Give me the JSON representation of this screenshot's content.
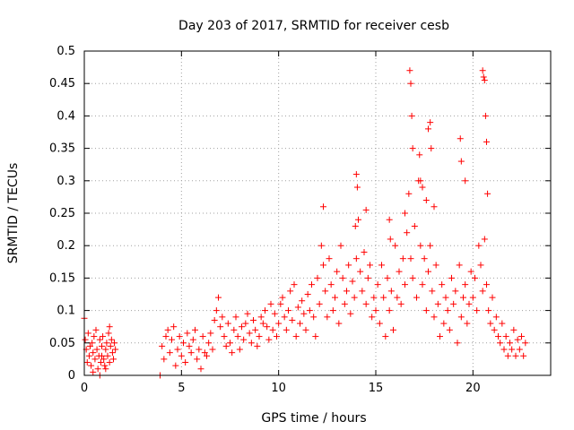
{
  "chart_data": {
    "type": "scatter",
    "title": "Day 203 of 2017, SRMTID for receiver cesb",
    "xlabel": "GPS time / hours",
    "ylabel": "SRMTID / TECUs",
    "xlim": [
      0,
      24
    ],
    "ylim": [
      0,
      0.5
    ],
    "x_ticks": [
      0,
      5,
      10,
      15,
      20
    ],
    "x_tick_labels": [
      "0",
      "5",
      "10",
      "15",
      "20"
    ],
    "y_ticks": [
      0,
      0.05,
      0.1,
      0.15,
      0.2,
      0.25,
      0.3,
      0.35,
      0.4,
      0.45,
      0.5
    ],
    "y_tick_labels": [
      "0",
      "0.05",
      "0.1",
      "0.15",
      "0.2",
      "0.25",
      "0.3",
      "0.35",
      "0.4",
      "0.45",
      "0.5"
    ],
    "grid": true,
    "marker": "+",
    "color": "#ff0000",
    "series": [
      {
        "name": "SRMTID",
        "x": [
          0.0,
          0.05,
          0.1,
          0.15,
          0.2,
          0.25,
          0.3,
          0.35,
          0.4,
          0.45,
          0.5,
          0.55,
          0.6,
          0.65,
          0.7,
          0.75,
          0.8,
          0.85,
          0.9,
          0.95,
          1.0,
          1.05,
          1.1,
          1.15,
          1.2,
          1.25,
          1.3,
          1.35,
          1.4,
          1.45,
          1.5,
          1.55,
          1.6,
          0.45,
          0.8,
          1.1,
          1.3,
          0.9,
          3.9,
          4.0,
          4.1,
          4.2,
          4.3,
          4.4,
          4.5,
          4.6,
          4.7,
          4.8,
          4.9,
          5.0,
          5.1,
          5.2,
          5.3,
          5.4,
          5.5,
          5.6,
          5.7,
          5.8,
          5.9,
          6.0,
          6.1,
          6.2,
          6.3,
          6.4,
          6.5,
          6.6,
          6.7,
          6.8,
          6.9,
          7.0,
          7.1,
          7.2,
          7.3,
          7.4,
          7.5,
          7.6,
          7.7,
          7.8,
          7.9,
          8.0,
          8.1,
          8.2,
          8.3,
          8.4,
          8.5,
          8.6,
          8.7,
          8.8,
          8.9,
          9.0,
          9.1,
          9.2,
          9.3,
          9.4,
          9.5,
          9.6,
          9.7,
          9.8,
          9.9,
          10.0,
          10.1,
          10.2,
          10.3,
          10.4,
          10.5,
          10.6,
          10.7,
          10.8,
          10.9,
          11.0,
          11.1,
          11.2,
          11.3,
          11.4,
          11.5,
          11.6,
          11.7,
          11.8,
          11.9,
          12.0,
          12.1,
          12.2,
          12.3,
          12.4,
          12.5,
          12.6,
          12.7,
          12.8,
          12.9,
          13.0,
          13.1,
          13.2,
          13.3,
          13.4,
          13.5,
          13.6,
          13.7,
          13.8,
          13.9,
          14.0,
          14.1,
          14.2,
          14.3,
          14.4,
          14.5,
          14.6,
          14.7,
          14.8,
          14.9,
          15.0,
          15.1,
          15.2,
          15.3,
          15.4,
          15.5,
          15.6,
          15.7,
          15.8,
          15.9,
          16.0,
          16.1,
          16.2,
          16.3,
          16.4,
          16.5,
          16.6,
          16.7,
          16.8,
          16.9,
          17.0,
          17.1,
          17.2,
          17.3,
          17.4,
          17.5,
          17.6,
          17.7,
          17.8,
          17.9,
          18.0,
          18.1,
          18.2,
          18.3,
          18.4,
          18.5,
          18.6,
          18.7,
          18.8,
          18.9,
          19.0,
          19.1,
          19.2,
          19.3,
          19.4,
          19.5,
          19.6,
          19.7,
          19.8,
          19.9,
          20.0,
          20.1,
          20.2,
          20.3,
          20.4,
          20.5,
          20.6,
          20.7,
          20.8,
          20.9,
          21.0,
          21.1,
          21.2,
          21.3,
          21.4,
          21.5,
          21.6,
          21.7,
          21.8,
          21.9,
          22.0,
          22.1,
          22.2,
          22.3,
          22.4,
          22.5,
          22.6,
          22.7,
          16.75,
          16.8,
          16.85,
          16.9,
          17.25,
          17.3,
          17.4,
          17.6,
          17.7,
          17.8,
          17.85,
          18.0,
          19.35,
          19.4,
          19.6,
          20.5,
          20.55,
          20.6,
          20.65,
          20.7,
          20.75,
          14.0,
          14.05,
          14.5,
          13.95,
          12.3,
          15.7,
          15.75,
          16.5
        ],
        "y": [
          0.088,
          0.055,
          0.04,
          0.02,
          0.065,
          0.03,
          0.045,
          0.015,
          0.05,
          0.035,
          0.06,
          0.025,
          0.07,
          0.04,
          0.01,
          0.03,
          0.055,
          0.02,
          0.045,
          0.06,
          0.025,
          0.015,
          0.04,
          0.05,
          0.03,
          0.065,
          0.02,
          0.045,
          0.055,
          0.035,
          0.025,
          0.05,
          0.04,
          0.005,
          0.0,
          0.01,
          0.075,
          0.03,
          0.0,
          0.045,
          0.025,
          0.06,
          0.07,
          0.035,
          0.055,
          0.075,
          0.015,
          0.04,
          0.06,
          0.03,
          0.05,
          0.02,
          0.065,
          0.045,
          0.035,
          0.055,
          0.07,
          0.025,
          0.04,
          0.01,
          0.06,
          0.035,
          0.03,
          0.05,
          0.065,
          0.04,
          0.085,
          0.1,
          0.12,
          0.075,
          0.09,
          0.06,
          0.045,
          0.08,
          0.05,
          0.035,
          0.07,
          0.09,
          0.06,
          0.04,
          0.075,
          0.055,
          0.08,
          0.095,
          0.065,
          0.05,
          0.085,
          0.07,
          0.045,
          0.06,
          0.09,
          0.08,
          0.1,
          0.075,
          0.055,
          0.11,
          0.07,
          0.095,
          0.06,
          0.08,
          0.11,
          0.12,
          0.09,
          0.07,
          0.1,
          0.13,
          0.085,
          0.14,
          0.06,
          0.105,
          0.08,
          0.115,
          0.095,
          0.07,
          0.125,
          0.1,
          0.14,
          0.09,
          0.06,
          0.15,
          0.11,
          0.2,
          0.17,
          0.13,
          0.09,
          0.18,
          0.14,
          0.1,
          0.12,
          0.16,
          0.08,
          0.2,
          0.15,
          0.11,
          0.13,
          0.17,
          0.095,
          0.145,
          0.12,
          0.18,
          0.24,
          0.16,
          0.13,
          0.19,
          0.11,
          0.15,
          0.17,
          0.09,
          0.12,
          0.1,
          0.14,
          0.08,
          0.17,
          0.12,
          0.06,
          0.15,
          0.1,
          0.13,
          0.07,
          0.2,
          0.12,
          0.16,
          0.11,
          0.18,
          0.14,
          0.22,
          0.28,
          0.18,
          0.15,
          0.23,
          0.12,
          0.3,
          0.2,
          0.14,
          0.18,
          0.1,
          0.16,
          0.2,
          0.13,
          0.09,
          0.17,
          0.11,
          0.06,
          0.14,
          0.08,
          0.12,
          0.1,
          0.07,
          0.15,
          0.11,
          0.13,
          0.05,
          0.17,
          0.09,
          0.12,
          0.14,
          0.08,
          0.11,
          0.16,
          0.12,
          0.15,
          0.1,
          0.2,
          0.17,
          0.13,
          0.21,
          0.14,
          0.1,
          0.08,
          0.12,
          0.07,
          0.09,
          0.06,
          0.05,
          0.08,
          0.04,
          0.06,
          0.03,
          0.05,
          0.04,
          0.07,
          0.03,
          0.055,
          0.04,
          0.06,
          0.03,
          0.05,
          0.47,
          0.45,
          0.4,
          0.35,
          0.34,
          0.3,
          0.29,
          0.27,
          0.38,
          0.39,
          0.35,
          0.26,
          0.365,
          0.33,
          0.3,
          0.47,
          0.46,
          0.455,
          0.4,
          0.36,
          0.28,
          0.31,
          0.29,
          0.255,
          0.23,
          0.26,
          0.24,
          0.21,
          0.25
        ]
      }
    ]
  }
}
